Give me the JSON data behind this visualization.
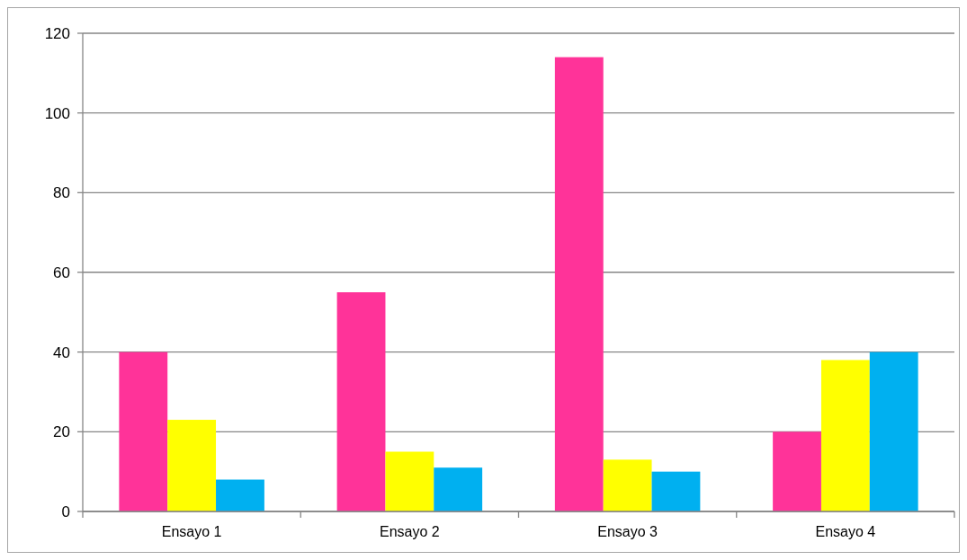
{
  "chart_data": {
    "type": "bar",
    "categories": [
      "Ensayo 1",
      "Ensayo 2",
      "Ensayo 3",
      "Ensayo 4"
    ],
    "series": [
      {
        "color": "#ff3399",
        "values": [
          40,
          55,
          114,
          20
        ]
      },
      {
        "color": "#ffff00",
        "values": [
          23,
          15,
          13,
          38
        ]
      },
      {
        "color": "#00b0f0",
        "values": [
          8,
          11,
          10,
          40
        ]
      }
    ],
    "ylim": [
      0,
      120
    ],
    "yticks": [
      0,
      20,
      40,
      60,
      80,
      100,
      120
    ],
    "grid": "y"
  }
}
